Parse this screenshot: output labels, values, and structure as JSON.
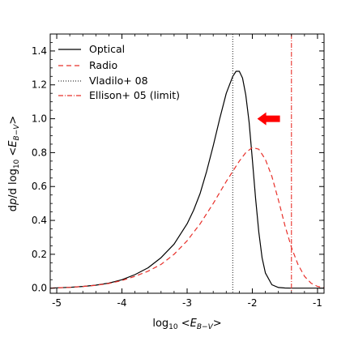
{
  "chart_data": {
    "type": "line",
    "title": "",
    "xlabel": "log₁₀ <E_{B−V}>",
    "ylabel": "dp/d log₁₀ <E_{B−V}>",
    "xlim": [
      -5.1,
      -0.9
    ],
    "ylim": [
      -0.03,
      1.5
    ],
    "x_ticks": [
      -5,
      -4,
      -3,
      -2,
      -1
    ],
    "x_tick_labels": [
      "-5",
      "-4",
      "-3",
      "-2",
      "-1"
    ],
    "y_ticks": [
      0.0,
      0.2,
      0.4,
      0.6,
      0.8,
      1.0,
      1.2,
      1.4
    ],
    "y_tick_labels": [
      "0.0",
      "0.2",
      "0.4",
      "0.6",
      "0.8",
      "1.0",
      "1.2",
      "1.4"
    ],
    "grid": false,
    "legend_position": "top-left",
    "series": [
      {
        "name": "Optical",
        "style": "solid",
        "color": "#000000",
        "x": [
          -5.1,
          -5.0,
          -4.8,
          -4.6,
          -4.4,
          -4.2,
          -4.0,
          -3.8,
          -3.6,
          -3.4,
          -3.2,
          -3.0,
          -2.9,
          -2.8,
          -2.7,
          -2.6,
          -2.5,
          -2.4,
          -2.3,
          -2.25,
          -2.2,
          -2.15,
          -2.1,
          -2.05,
          -2.0,
          -1.95,
          -1.9,
          -1.85,
          -1.8,
          -1.7,
          -1.6,
          -1.5,
          -1.4,
          -1.2,
          -1.0,
          -0.9
        ],
        "y": [
          0.0,
          0.002,
          0.005,
          0.01,
          0.018,
          0.03,
          0.05,
          0.08,
          0.12,
          0.18,
          0.26,
          0.38,
          0.46,
          0.56,
          0.69,
          0.84,
          1.0,
          1.15,
          1.25,
          1.28,
          1.28,
          1.24,
          1.14,
          0.98,
          0.76,
          0.53,
          0.33,
          0.18,
          0.09,
          0.02,
          0.004,
          0.001,
          0.0,
          0.0,
          0.0,
          0.0
        ]
      },
      {
        "name": "Radio",
        "style": "dashed",
        "color": "#e8302a",
        "x": [
          -5.1,
          -5.0,
          -4.8,
          -4.6,
          -4.4,
          -4.2,
          -4.0,
          -3.8,
          -3.6,
          -3.4,
          -3.2,
          -3.0,
          -2.8,
          -2.6,
          -2.4,
          -2.2,
          -2.1,
          -2.0,
          -1.9,
          -1.8,
          -1.7,
          -1.6,
          -1.5,
          -1.4,
          -1.3,
          -1.2,
          -1.1,
          -1.0,
          -0.9
        ],
        "y": [
          0.0,
          0.002,
          0.005,
          0.01,
          0.017,
          0.028,
          0.045,
          0.07,
          0.1,
          0.14,
          0.2,
          0.28,
          0.38,
          0.5,
          0.63,
          0.75,
          0.8,
          0.83,
          0.82,
          0.76,
          0.66,
          0.52,
          0.37,
          0.24,
          0.14,
          0.07,
          0.03,
          0.01,
          0.004
        ]
      }
    ],
    "vlines": [
      {
        "name": "Vladilo+ 08",
        "x": -2.3,
        "style": "dotted",
        "color": "#333333"
      },
      {
        "name": "Ellison+ 05 (limit)",
        "x": -1.4,
        "style": "dashdot",
        "color": "#e8302a"
      }
    ],
    "annotations": [
      {
        "type": "arrow",
        "direction": "left",
        "x": -1.75,
        "y": 1.0,
        "color": "#ff0000"
      }
    ]
  }
}
